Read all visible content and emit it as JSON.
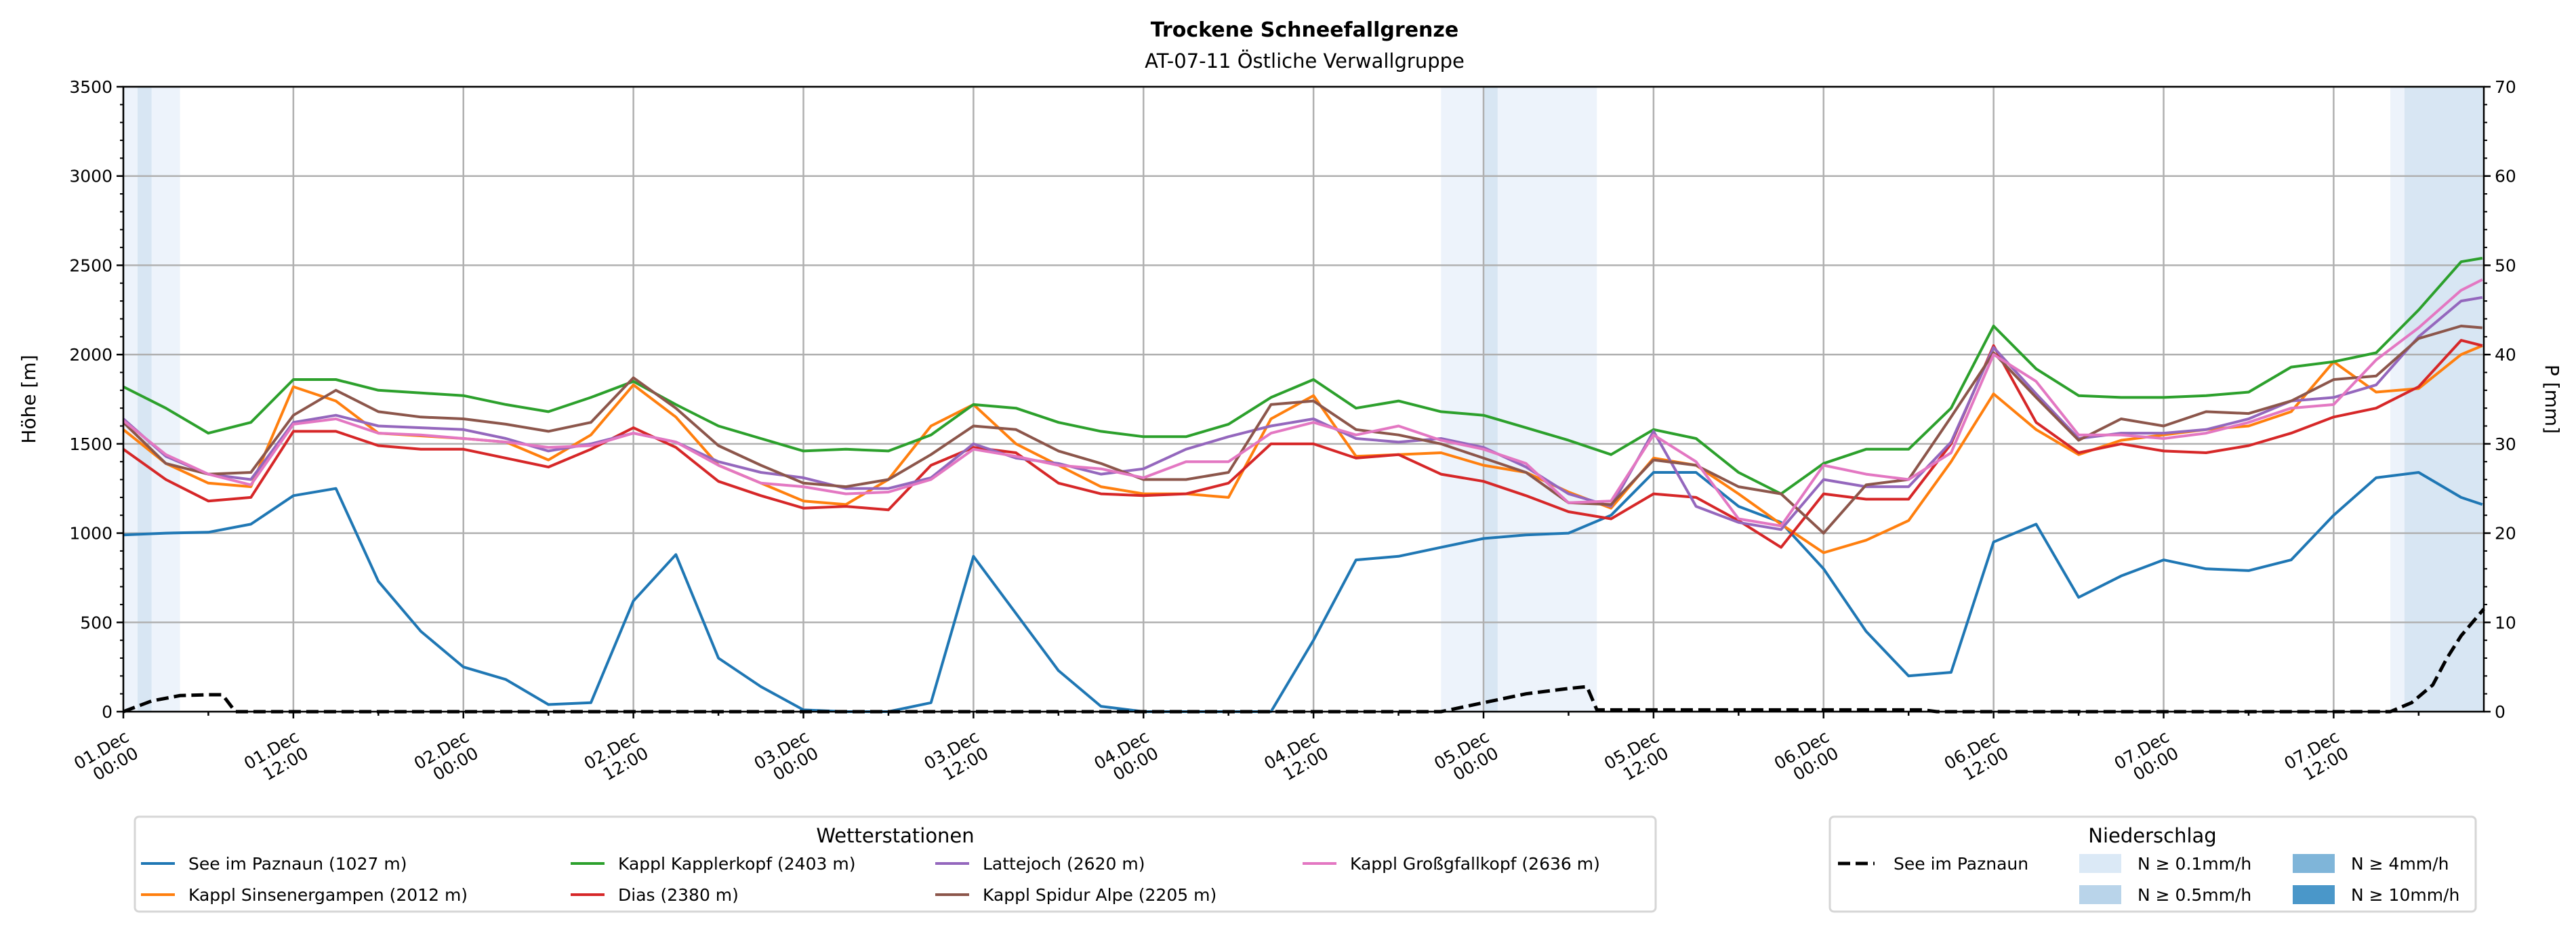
{
  "chart_data": {
    "type": "line",
    "title": "Trockene Schneefallgrenze",
    "subtitle": "AT-07-11 Östliche Verwallgruppe",
    "ylabel": "Höhe [m]",
    "ylabel_right": "P [mm]",
    "ylim": [
      0,
      3500
    ],
    "ylim_right": [
      0,
      70
    ],
    "xlim_hours": [
      0,
      166.6
    ],
    "y_ticks": [
      0,
      500,
      1000,
      1500,
      2000,
      2500,
      3000,
      3500
    ],
    "y_ticks_right": [
      0,
      10,
      20,
      30,
      40,
      50,
      60,
      70
    ],
    "grid": true,
    "x_ticks": [
      {
        "hour": 0,
        "label": [
          "01.Dec",
          "00:00"
        ]
      },
      {
        "hour": 12,
        "label": [
          "01.Dec",
          "12:00"
        ]
      },
      {
        "hour": 24,
        "label": [
          "02.Dec",
          "00:00"
        ]
      },
      {
        "hour": 36,
        "label": [
          "02.Dec",
          "12:00"
        ]
      },
      {
        "hour": 48,
        "label": [
          "03.Dec",
          "00:00"
        ]
      },
      {
        "hour": 60,
        "label": [
          "03.Dec",
          "12:00"
        ]
      },
      {
        "hour": 72,
        "label": [
          "04.Dec",
          "00:00"
        ]
      },
      {
        "hour": 84,
        "label": [
          "04.Dec",
          "12:00"
        ]
      },
      {
        "hour": 96,
        "label": [
          "05.Dec",
          "00:00"
        ]
      },
      {
        "hour": 108,
        "label": [
          "05.Dec",
          "12:00"
        ]
      },
      {
        "hour": 120,
        "label": [
          "06.Dec",
          "00:00"
        ]
      },
      {
        "hour": 132,
        "label": [
          "06.Dec",
          "12:00"
        ]
      },
      {
        "hour": 144,
        "label": [
          "07.Dec",
          "00:00"
        ]
      },
      {
        "hour": 156,
        "label": [
          "07.Dec",
          "12:00"
        ]
      }
    ],
    "hours": [
      0,
      3,
      6,
      9,
      12,
      15,
      18,
      21,
      24,
      27,
      30,
      33,
      36,
      39,
      42,
      45,
      48,
      51,
      54,
      57,
      60,
      63,
      66,
      69,
      72,
      75,
      78,
      81,
      84,
      87,
      90,
      93,
      96,
      99,
      102,
      105,
      108,
      111,
      114,
      117,
      120,
      123,
      126,
      129,
      132,
      135,
      138,
      141,
      144,
      147,
      150,
      153,
      156,
      159,
      162,
      165,
      166.5
    ],
    "series": [
      {
        "name": "See im Paznaun (1027 m)",
        "color": "#1f77b4",
        "values": [
          990,
          1000,
          1005,
          1050,
          1210,
          1250,
          730,
          450,
          250,
          180,
          40,
          50,
          620,
          880,
          300,
          140,
          10,
          0,
          0,
          50,
          870,
          550,
          230,
          30,
          0,
          0,
          0,
          0,
          400,
          850,
          870,
          920,
          970,
          990,
          1000,
          1100,
          1340,
          1340,
          1150,
          1060,
          800,
          450,
          200,
          220,
          950,
          1050,
          640,
          760,
          850,
          800,
          790,
          850,
          1100,
          1310,
          1340,
          1200,
          1160
        ]
      },
      {
        "name": "Kappl Sinsenergampen (2012 m)",
        "color": "#ff7f0e",
        "values": [
          1580,
          1390,
          1280,
          1260,
          1820,
          1740,
          1560,
          1545,
          1530,
          1510,
          1410,
          1550,
          1830,
          1650,
          1380,
          1280,
          1180,
          1160,
          1300,
          1600,
          1720,
          1500,
          1380,
          1260,
          1220,
          1220,
          1200,
          1640,
          1770,
          1430,
          1440,
          1450,
          1380,
          1340,
          1230,
          1140,
          1420,
          1380,
          1220,
          1050,
          890,
          960,
          1070,
          1400,
          1780,
          1580,
          1440,
          1520,
          1550,
          1580,
          1600,
          1680,
          1960,
          1790,
          1810,
          2000,
          2050
        ]
      },
      {
        "name": "Kappl Kapplerkopf (2403 m)",
        "color": "#2ca02c",
        "values": [
          1820,
          1700,
          1560,
          1620,
          1860,
          1860,
          1800,
          1785,
          1770,
          1720,
          1680,
          1760,
          1850,
          1720,
          1600,
          1530,
          1460,
          1470,
          1460,
          1550,
          1720,
          1700,
          1620,
          1570,
          1540,
          1540,
          1610,
          1760,
          1860,
          1700,
          1740,
          1680,
          1660,
          1590,
          1520,
          1440,
          1580,
          1530,
          1340,
          1220,
          1390,
          1470,
          1470,
          1700,
          2160,
          1920,
          1770,
          1760,
          1760,
          1770,
          1790,
          1930,
          1960,
          2010,
          2250,
          2520,
          2540
        ]
      },
      {
        "name": "Dias (2380 m)",
        "color": "#d62728",
        "values": [
          1470,
          1300,
          1180,
          1200,
          1570,
          1570,
          1490,
          1470,
          1470,
          1420,
          1370,
          1470,
          1590,
          1480,
          1290,
          1210,
          1140,
          1150,
          1130,
          1380,
          1480,
          1450,
          1280,
          1220,
          1210,
          1220,
          1280,
          1500,
          1500,
          1420,
          1440,
          1330,
          1290,
          1210,
          1120,
          1080,
          1220,
          1200,
          1070,
          920,
          1220,
          1190,
          1190,
          1500,
          2050,
          1620,
          1450,
          1500,
          1460,
          1450,
          1490,
          1560,
          1650,
          1700,
          1820,
          2080,
          2050
        ]
      },
      {
        "name": "Lattejoch (2620 m)",
        "color": "#9467bd",
        "values": [
          1640,
          1430,
          1330,
          1300,
          1620,
          1660,
          1600,
          1590,
          1580,
          1530,
          1460,
          1500,
          1560,
          1510,
          1400,
          1340,
          1310,
          1250,
          1250,
          1310,
          1500,
          1420,
          1390,
          1330,
          1360,
          1470,
          1540,
          1600,
          1640,
          1530,
          1510,
          1530,
          1480,
          1370,
          1220,
          1150,
          1570,
          1150,
          1060,
          1020,
          1300,
          1260,
          1260,
          1510,
          2040,
          1780,
          1530,
          1560,
          1560,
          1580,
          1640,
          1740,
          1760,
          1830,
          2100,
          2300,
          2320
        ]
      },
      {
        "name": "Kappl Spidur Alpe (2205 m)",
        "color": "#8c564b",
        "values": [
          1620,
          1390,
          1330,
          1340,
          1660,
          1800,
          1680,
          1650,
          1640,
          1610,
          1570,
          1620,
          1870,
          1700,
          1490,
          1380,
          1280,
          1260,
          1300,
          1440,
          1600,
          1580,
          1460,
          1390,
          1300,
          1300,
          1340,
          1720,
          1740,
          1580,
          1550,
          1500,
          1420,
          1340,
          1170,
          1160,
          1410,
          1380,
          1260,
          1220,
          1000,
          1270,
          1300,
          1650,
          2010,
          1760,
          1520,
          1640,
          1600,
          1680,
          1670,
          1740,
          1860,
          1880,
          2090,
          2160,
          2150
        ]
      },
      {
        "name": "Kappl Großgfallkopf (2636 m)",
        "color": "#e377c2",
        "values": [
          1630,
          1440,
          1330,
          1270,
          1610,
          1640,
          1560,
          1550,
          1530,
          1510,
          1480,
          1490,
          1560,
          1510,
          1380,
          1280,
          1260,
          1220,
          1230,
          1300,
          1470,
          1430,
          1380,
          1360,
          1310,
          1400,
          1400,
          1560,
          1620,
          1550,
          1600,
          1520,
          1470,
          1390,
          1170,
          1180,
          1550,
          1400,
          1080,
          1040,
          1380,
          1330,
          1300,
          1450,
          2000,
          1850,
          1550,
          1550,
          1530,
          1560,
          1620,
          1700,
          1720,
          1970,
          2150,
          2360,
          2420
        ]
      }
    ],
    "precipitation": {
      "name": "See im Paznaun",
      "axis": "right",
      "points": [
        [
          0,
          0
        ],
        [
          2,
          1.2
        ],
        [
          4,
          1.8
        ],
        [
          6,
          1.9
        ],
        [
          7,
          1.9
        ],
        [
          7.9,
          0
        ],
        [
          93,
          0
        ],
        [
          96,
          1.0
        ],
        [
          99,
          2.0
        ],
        [
          102,
          2.6
        ],
        [
          103.3,
          2.8
        ],
        [
          104,
          0.2
        ],
        [
          127,
          0.2
        ],
        [
          128,
          0
        ],
        [
          160,
          0
        ],
        [
          161.5,
          1
        ],
        [
          163,
          3
        ],
        [
          164,
          6
        ],
        [
          165,
          8.5
        ],
        [
          166.6,
          11.5
        ]
      ]
    },
    "intensity_bands": [
      {
        "start": 0,
        "end": 1,
        "level": 0
      },
      {
        "start": 1,
        "end": 2,
        "level": 1
      },
      {
        "start": 2,
        "end": 4,
        "level": 0
      },
      {
        "start": 93,
        "end": 96,
        "level": 0
      },
      {
        "start": 96,
        "end": 97,
        "level": 1
      },
      {
        "start": 97,
        "end": 104,
        "level": 0
      },
      {
        "start": 160,
        "end": 161,
        "level": 0
      },
      {
        "start": 161,
        "end": 166.6,
        "level": 1
      }
    ],
    "legend_stations": {
      "title": "Wetterstationen",
      "placement": "bottom-left"
    },
    "legend_precip": {
      "title": "Niederschlag",
      "placement": "bottom-right",
      "line_label": "See im Paznaun",
      "levels": [
        {
          "label": "N ≥ 0.1mm/h",
          "color": "#dbe9f6",
          "band_color": "#edf3fb"
        },
        {
          "label": "N ≥ 0.5mm/h",
          "color": "#b9d4ea",
          "band_color": "#d8e6f3"
        },
        {
          "label": "N ≥ 4mm/h",
          "color": "#7fb5d9",
          "band_color": "#b7d3ea"
        },
        {
          "label": "N ≥ 10mm/h",
          "color": "#4a97c9",
          "band_color": "#8cbddf"
        }
      ]
    }
  }
}
